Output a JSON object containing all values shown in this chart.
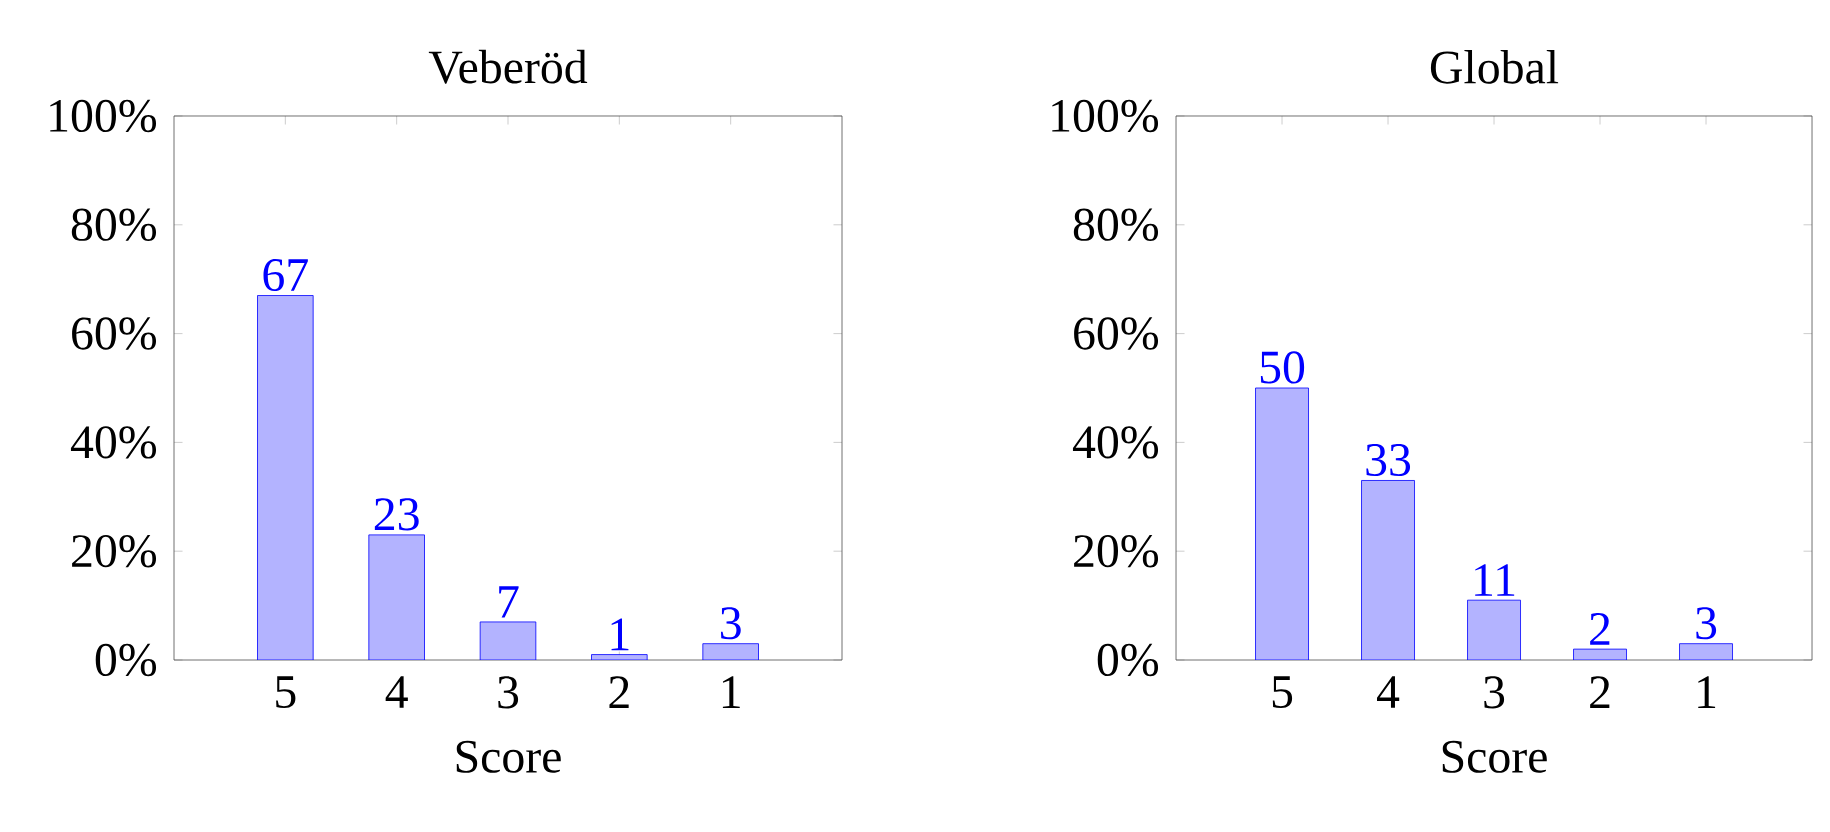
{
  "chart_data": [
    {
      "type": "bar",
      "title": "Veberöd",
      "xlabel": "Score",
      "categories": [
        "5",
        "4",
        "3",
        "2",
        "1"
      ],
      "values": [
        67,
        23,
        7,
        1,
        3
      ],
      "color": "#b3b3ff",
      "ylim": [
        0,
        100
      ],
      "yticks": [
        {
          "value": 0,
          "label": "0%"
        },
        {
          "value": 20,
          "label": "20%"
        },
        {
          "value": 40,
          "label": "40%"
        },
        {
          "value": 60,
          "label": "60%"
        },
        {
          "value": 80,
          "label": "80%"
        },
        {
          "value": 100,
          "label": "100%"
        }
      ],
      "data_labels": true
    },
    {
      "type": "bar",
      "title": "Global",
      "xlabel": "Score",
      "categories": [
        "5",
        "4",
        "3",
        "2",
        "1"
      ],
      "values": [
        50,
        33,
        11,
        2,
        3
      ],
      "color": "#b3b3ff",
      "ylim": [
        0,
        100
      ],
      "yticks": [
        {
          "value": 0,
          "label": "0%"
        },
        {
          "value": 20,
          "label": "20%"
        },
        {
          "value": 40,
          "label": "40%"
        },
        {
          "value": 60,
          "label": "60%"
        },
        {
          "value": 80,
          "label": "80%"
        },
        {
          "value": 100,
          "label": "100%"
        }
      ],
      "data_labels": true
    }
  ]
}
